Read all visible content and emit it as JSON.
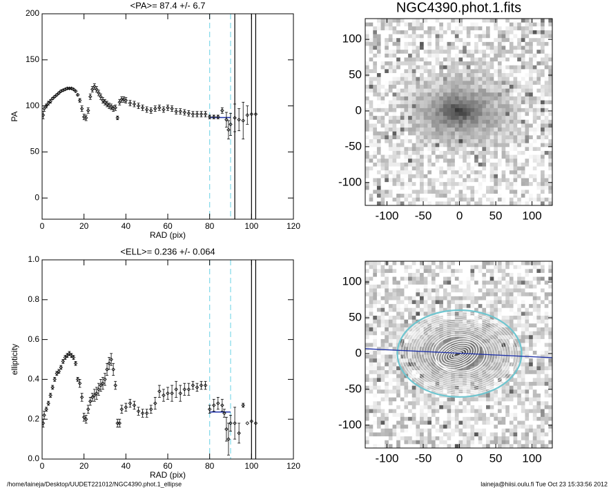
{
  "chart_data": [
    {
      "type": "scatter",
      "title": "<PA>=  87.4 +/-   6.7",
      "xlabel": "RAD (pix)",
      "ylabel": "PA",
      "xlim": [
        0,
        120
      ],
      "ylim": [
        -23,
        200
      ],
      "xticks": [
        0,
        20,
        40,
        60,
        80,
        100,
        120
      ],
      "yticks": [
        0,
        50,
        100,
        150,
        200
      ],
      "x": [
        0.5,
        1,
        2,
        3,
        4,
        5,
        6,
        7,
        8,
        9,
        10,
        11,
        12,
        13,
        14,
        15,
        16,
        17,
        18,
        19,
        20,
        21,
        22,
        23,
        24,
        25,
        26,
        27,
        28,
        29,
        30,
        31,
        32,
        33,
        34,
        35,
        36,
        37,
        38,
        39,
        40,
        42,
        44,
        46,
        48,
        50,
        52,
        54,
        56,
        58,
        60,
        62,
        64,
        66,
        68,
        70,
        72,
        74,
        76,
        78,
        80,
        82,
        84,
        86,
        88,
        89,
        90,
        92,
        94,
        96,
        98,
        100,
        102
      ],
      "values": [
        90,
        97,
        100,
        103,
        105,
        108,
        110,
        112,
        114,
        116,
        117,
        118,
        119,
        119,
        119,
        118,
        116,
        112,
        106,
        97,
        88,
        87,
        95,
        110,
        118,
        121,
        118,
        114,
        110,
        106,
        104,
        102,
        100,
        99,
        97,
        98,
        87,
        104,
        107,
        107,
        106,
        103,
        102,
        100,
        98,
        96,
        95,
        97,
        98,
        96,
        98,
        97,
        94,
        94,
        93,
        92,
        91,
        91,
        91,
        91,
        88,
        88,
        88,
        95,
        85,
        74,
        80,
        87,
        85,
        84,
        90,
        91,
        91
      ],
      "errors": [
        4,
        3,
        2,
        2,
        2,
        1,
        1,
        1,
        1,
        1,
        1,
        1,
        1,
        1,
        1,
        1,
        1,
        1,
        2,
        3,
        3,
        3,
        3,
        3,
        3,
        3,
        3,
        3,
        3,
        3,
        3,
        3,
        3,
        3,
        3,
        3,
        2,
        3,
        3,
        3,
        3,
        3,
        3,
        3,
        3,
        3,
        3,
        3,
        3,
        3,
        3,
        3,
        3,
        3,
        3,
        3,
        3,
        3,
        3,
        3,
        2,
        2,
        2,
        3,
        8,
        10,
        12,
        15,
        12,
        20,
        10,
        0,
        0
      ],
      "color": "#000000",
      "vlines": [
        {
          "x": 80,
          "color": "#7fd8e8",
          "dash": true
        },
        {
          "x": 90,
          "color": "#7fd8e8",
          "dash": true
        },
        {
          "x": 92,
          "color": "#000000",
          "dash": false
        },
        {
          "x": 100,
          "color": "#000000",
          "dash": false
        },
        {
          "x": 102,
          "color": "#000000",
          "dash": false
        }
      ],
      "fit": {
        "x": [
          80,
          90
        ],
        "y": 87.4,
        "color": "#1c2fa8"
      }
    },
    {
      "type": "scatter",
      "title": "<ELL>= 0.236 +/-  0.064",
      "xlabel": "RAD (pix)",
      "ylabel": "ellipticity",
      "xlim": [
        0,
        120
      ],
      "ylim": [
        0,
        1
      ],
      "xticks": [
        0,
        20,
        40,
        60,
        80,
        100,
        120
      ],
      "yticks": [
        {
          "value": 0,
          "label": "0.0"
        },
        0.2,
        0.4,
        0.6,
        0.8,
        {
          "value": 1,
          "label": "1.0"
        }
      ],
      "x": [
        0.5,
        1,
        2,
        3,
        4,
        5,
        6,
        7,
        8,
        9,
        10,
        11,
        12,
        13,
        14,
        15,
        16,
        17,
        18,
        19,
        20,
        21,
        22,
        23,
        24,
        25,
        26,
        27,
        28,
        29,
        30,
        31,
        32,
        33,
        34,
        35,
        36,
        37,
        38,
        40,
        42,
        44,
        46,
        48,
        50,
        52,
        54,
        56,
        58,
        60,
        62,
        64,
        66,
        68,
        70,
        72,
        74,
        76,
        78,
        80,
        82,
        84,
        86,
        87,
        88,
        89,
        90,
        92,
        94,
        96,
        98,
        100,
        102
      ],
      "values": [
        0.18,
        0.22,
        0.25,
        0.28,
        0.32,
        0.36,
        0.4,
        0.43,
        0.44,
        0.46,
        0.49,
        0.51,
        0.52,
        0.53,
        0.52,
        0.51,
        0.48,
        0.4,
        0.38,
        0.31,
        0.21,
        0.2,
        0.25,
        0.29,
        0.31,
        0.32,
        0.33,
        0.35,
        0.37,
        0.38,
        0.4,
        0.45,
        0.48,
        0.5,
        0.45,
        0.37,
        0.18,
        0.18,
        0.25,
        0.26,
        0.28,
        0.27,
        0.24,
        0.23,
        0.23,
        0.25,
        0.28,
        0.34,
        0.32,
        0.33,
        0.33,
        0.35,
        0.33,
        0.35,
        0.35,
        0.37,
        0.36,
        0.37,
        0.37,
        0.25,
        0.27,
        0.28,
        0.27,
        0.23,
        0.15,
        0.1,
        0.18,
        0.18,
        0.13,
        0.27,
        0.18,
        0.19,
        0.18
      ],
      "errors": [
        0.02,
        0.02,
        0.01,
        0.01,
        0.01,
        0.01,
        0.01,
        0.01,
        0.01,
        0.01,
        0.01,
        0.01,
        0.01,
        0.01,
        0.01,
        0.01,
        0.01,
        0.01,
        0.02,
        0.02,
        0.02,
        0.02,
        0.02,
        0.02,
        0.02,
        0.03,
        0.03,
        0.03,
        0.03,
        0.03,
        0.03,
        0.03,
        0.03,
        0.03,
        0.03,
        0.02,
        0.02,
        0.02,
        0.02,
        0.02,
        0.02,
        0.02,
        0.02,
        0.02,
        0.02,
        0.02,
        0.03,
        0.03,
        0.03,
        0.03,
        0.04,
        0.04,
        0.04,
        0.03,
        0.03,
        0.02,
        0.02,
        0.02,
        0.02,
        0.02,
        0.03,
        0.03,
        0.03,
        0.02,
        0.06,
        0.08,
        0.04,
        0.08,
        0.05,
        0.01,
        0,
        0,
        0
      ],
      "color": "#000000",
      "vlines": [
        {
          "x": 80,
          "color": "#7fd8e8",
          "dash": true
        },
        {
          "x": 90,
          "color": "#7fd8e8",
          "dash": true
        },
        {
          "x": 100,
          "color": "#000000",
          "dash": false
        },
        {
          "x": 102,
          "color": "#000000",
          "dash": false
        }
      ],
      "fit": {
        "x": [
          80,
          90
        ],
        "y": 0.236,
        "color": "#1c2fa8"
      }
    },
    {
      "type": "image",
      "title": "NGC4390.phot.1.fits",
      "xlim": [
        -130,
        128
      ],
      "ylim": [
        -132,
        129
      ],
      "xticks": [
        -100,
        -50,
        0,
        50,
        100
      ],
      "yticks": [
        -100,
        -50,
        0,
        50,
        100
      ]
    },
    {
      "type": "image_contours",
      "xlim": [
        -130,
        128
      ],
      "ylim": [
        -132,
        129
      ],
      "xticks": [
        -100,
        -50,
        0,
        50,
        100
      ],
      "yticks": [
        -100,
        -50,
        0,
        50,
        100
      ]
    }
  ],
  "footer": {
    "path": "/home/laineja/Desktop/UUDET221012/NGC4390.phot.1_ellipse",
    "stamp": "laineja@hiisi.oulu.fi  Tue Oct 23 15:33:56 2012"
  }
}
